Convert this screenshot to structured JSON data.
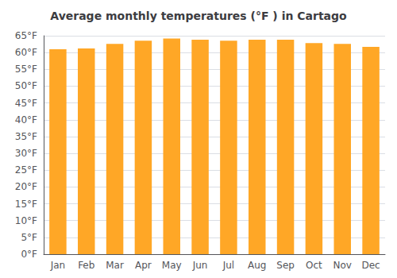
{
  "chart_data": {
    "type": "bar",
    "title": "Average monthly temperatures (°F ) in Cartago",
    "categories": [
      "Jan",
      "Feb",
      "Mar",
      "Apr",
      "May",
      "Jun",
      "Jul",
      "Aug",
      "Sep",
      "Oct",
      "Nov",
      "Dec"
    ],
    "values": [
      61.0,
      61.2,
      62.6,
      63.5,
      64.2,
      63.8,
      63.5,
      63.8,
      63.8,
      62.8,
      62.6,
      61.7
    ],
    "color": "#FFA726",
    "ylim": [
      0,
      65
    ],
    "yticks": [
      {
        "value": 0,
        "label": "0°F"
      },
      {
        "value": 5,
        "label": "5°F"
      },
      {
        "value": 10,
        "label": "10°F"
      },
      {
        "value": 15,
        "label": "15°F"
      },
      {
        "value": 20,
        "label": "20°F"
      },
      {
        "value": 25,
        "label": "25°F"
      },
      {
        "value": 30,
        "label": "30°F"
      },
      {
        "value": 35,
        "label": "35°F"
      },
      {
        "value": 40,
        "label": "40°F"
      },
      {
        "value": 45,
        "label": "45°F"
      },
      {
        "value": 50,
        "label": "50°F"
      },
      {
        "value": 55,
        "label": "55°F"
      },
      {
        "value": 60,
        "label": "60°F"
      },
      {
        "value": 65,
        "label": "65°F"
      }
    ],
    "grid": true
  }
}
